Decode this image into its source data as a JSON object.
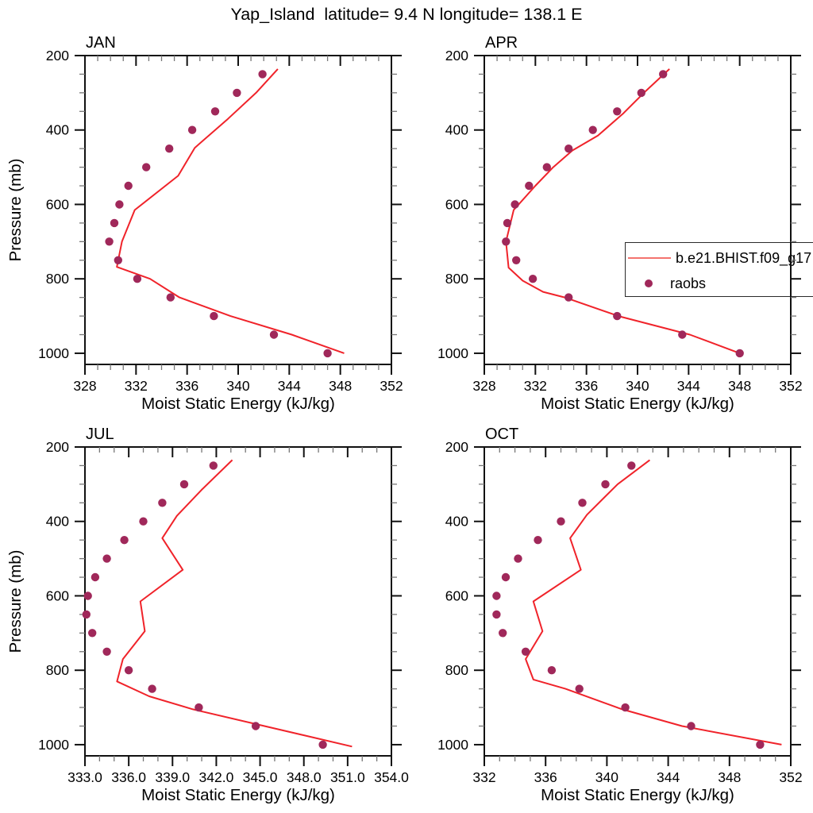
{
  "title": "Yap_Island  latitude= 9.4 N longitude= 138.1 E",
  "legend": {
    "model_label": "b.e21.BHIST.f09_g17",
    "obs_label": "raobs"
  },
  "colors": {
    "model_line": "#f0232a",
    "legend_line": "#f4736e",
    "raobs_dot": "#a0285a",
    "axis": "#111111",
    "minor_tick": "#777777",
    "text": "#000000"
  },
  "chart_data": [
    {
      "type": "line+scatter",
      "title": "JAN",
      "xlabel": "Moist Static Energy (kJ/kg)",
      "ylabel": "Pressure (mb)",
      "xlim": [
        328,
        352
      ],
      "xticks": [
        328,
        332,
        336,
        340,
        344,
        348,
        352
      ],
      "xtick_labels": [
        "328",
        "332",
        "336",
        "340",
        "344",
        "348",
        "352"
      ],
      "xminor_step": 1,
      "ylim": [
        200,
        1030
      ],
      "yticks": [
        200,
        400,
        600,
        800,
        1000
      ],
      "ytick_labels": [
        "200",
        "400",
        "600",
        "800",
        "1000"
      ],
      "yminor_step": 50,
      "y_axis_reversed": true,
      "grid": false,
      "series": [
        {
          "name": "b.e21.BHIST.f09_g17",
          "style": "line",
          "points_pv": [
            [
              236,
              343.1
            ],
            [
              300,
              341.4
            ],
            [
              370,
              339.2
            ],
            [
              448,
              336.6
            ],
            [
              523,
              335.3
            ],
            [
              615,
              331.9
            ],
            [
              700,
              330.9
            ],
            [
              768,
              330.5
            ],
            [
              800,
              333.1
            ],
            [
              850,
              335.4
            ],
            [
              900,
              339.4
            ],
            [
              950,
              344.2
            ],
            [
              1000,
              348.3
            ]
          ]
        },
        {
          "name": "raobs",
          "style": "dots",
          "points_pv": [
            [
              1000,
              347.0
            ],
            [
              950,
              342.8
            ],
            [
              900,
              338.1
            ],
            [
              850,
              334.7
            ],
            [
              800,
              332.1
            ],
            [
              750,
              330.6
            ],
            [
              700,
              329.9
            ],
            [
              650,
              330.3
            ],
            [
              600,
              330.7
            ],
            [
              550,
              331.4
            ],
            [
              500,
              332.8
            ],
            [
              450,
              334.6
            ],
            [
              400,
              336.4
            ],
            [
              350,
              338.2
            ],
            [
              300,
              339.9
            ],
            [
              250,
              341.9
            ]
          ]
        }
      ]
    },
    {
      "type": "line+scatter",
      "title": "APR",
      "xlabel": "Moist Static Energy (kJ/kg)",
      "ylabel": "",
      "xlim": [
        328,
        352
      ],
      "xticks": [
        328,
        332,
        336,
        340,
        344,
        348,
        352
      ],
      "xtick_labels": [
        "328",
        "332",
        "336",
        "340",
        "344",
        "348",
        "352"
      ],
      "xminor_step": 1,
      "ylim": [
        200,
        1030
      ],
      "yticks": [
        200,
        400,
        600,
        800,
        1000
      ],
      "ytick_labels": [
        "200",
        "400",
        "600",
        "800",
        "1000"
      ],
      "yminor_step": 50,
      "y_axis_reversed": true,
      "grid": false,
      "series": [
        {
          "name": "b.e21.BHIST.f09_g17",
          "style": "line",
          "points_pv": [
            [
              236,
              342.5
            ],
            [
              300,
              340.5
            ],
            [
              355,
              338.9
            ],
            [
              415,
              336.9
            ],
            [
              455,
              334.9
            ],
            [
              500,
              333.4
            ],
            [
              550,
              332.0
            ],
            [
              615,
              330.3
            ],
            [
              700,
              329.7
            ],
            [
              770,
              329.9
            ],
            [
              805,
              331.0
            ],
            [
              835,
              332.6
            ],
            [
              850,
              334.3
            ],
            [
              900,
              338.5
            ],
            [
              950,
              344.1
            ],
            [
              1000,
              348.0
            ]
          ]
        },
        {
          "name": "raobs",
          "style": "dots",
          "points_pv": [
            [
              1000,
              348.0
            ],
            [
              950,
              343.5
            ],
            [
              900,
              338.4
            ],
            [
              850,
              334.6
            ],
            [
              800,
              331.8
            ],
            [
              750,
              330.5
            ],
            [
              700,
              329.7
            ],
            [
              650,
              329.8
            ],
            [
              600,
              330.4
            ],
            [
              550,
              331.5
            ],
            [
              500,
              332.9
            ],
            [
              450,
              334.6
            ],
            [
              400,
              336.5
            ],
            [
              350,
              338.4
            ],
            [
              300,
              340.3
            ],
            [
              250,
              342.0
            ]
          ]
        }
      ]
    },
    {
      "type": "line+scatter",
      "title": "JUL",
      "xlabel": "Moist Static Energy (kJ/kg)",
      "ylabel": "Pressure (mb)",
      "xlim": [
        333,
        354
      ],
      "xticks": [
        333,
        336,
        339,
        342,
        345,
        348,
        351,
        354
      ],
      "xtick_labels": [
        "333.0",
        "336.0",
        "339.0",
        "342.0",
        "345.0",
        "348.0",
        "351.0",
        "354.0"
      ],
      "xminor_step": 1,
      "ylim": [
        200,
        1030
      ],
      "yticks": [
        200,
        400,
        600,
        800,
        1000
      ],
      "ytick_labels": [
        "200",
        "400",
        "600",
        "800",
        "1000"
      ],
      "yminor_step": 50,
      "y_axis_reversed": true,
      "grid": false,
      "series": [
        {
          "name": "b.e21.BHIST.f09_g17",
          "style": "line",
          "points_pv": [
            [
              235,
              343.1
            ],
            [
              315,
              341.0
            ],
            [
              385,
              339.3
            ],
            [
              445,
              338.3
            ],
            [
              530,
              339.7
            ],
            [
              615,
              336.8
            ],
            [
              695,
              337.1
            ],
            [
              770,
              335.6
            ],
            [
              830,
              335.2
            ],
            [
              870,
              337.4
            ],
            [
              905,
              340.4
            ],
            [
              950,
              345.3
            ],
            [
              1005,
              351.3
            ]
          ]
        },
        {
          "name": "raobs",
          "style": "dots",
          "points_pv": [
            [
              1000,
              349.3
            ],
            [
              950,
              344.7
            ],
            [
              900,
              340.8
            ],
            [
              850,
              337.6
            ],
            [
              800,
              336.0
            ],
            [
              750,
              334.5
            ],
            [
              700,
              333.5
            ],
            [
              650,
              333.1
            ],
            [
              600,
              333.2
            ],
            [
              550,
              333.7
            ],
            [
              500,
              334.5
            ],
            [
              450,
              335.7
            ],
            [
              400,
              337.0
            ],
            [
              350,
              338.3
            ],
            [
              300,
              339.8
            ],
            [
              250,
              341.8
            ]
          ]
        }
      ]
    },
    {
      "type": "line+scatter",
      "title": "OCT",
      "xlabel": "Moist Static Energy (kJ/kg)",
      "ylabel": "",
      "xlim": [
        332,
        352
      ],
      "xticks": [
        332,
        336,
        340,
        344,
        348,
        352
      ],
      "xtick_labels": [
        "332",
        "336",
        "340",
        "344",
        "348",
        "352"
      ],
      "xminor_step": 1,
      "ylim": [
        200,
        1030
      ],
      "yticks": [
        200,
        400,
        600,
        800,
        1000
      ],
      "ytick_labels": [
        "200",
        "400",
        "600",
        "800",
        "1000"
      ],
      "yminor_step": 50,
      "y_axis_reversed": true,
      "grid": false,
      "series": [
        {
          "name": "b.e21.BHIST.f09_g17",
          "style": "line",
          "points_pv": [
            [
              235,
              342.8
            ],
            [
              300,
              340.7
            ],
            [
              382,
              338.7
            ],
            [
              445,
              337.6
            ],
            [
              530,
              338.3
            ],
            [
              615,
              335.2
            ],
            [
              695,
              335.8
            ],
            [
              770,
              334.7
            ],
            [
              825,
              335.2
            ],
            [
              850,
              337.3
            ],
            [
              905,
              341.0
            ],
            [
              950,
              344.9
            ],
            [
              1000,
              351.4
            ]
          ]
        },
        {
          "name": "raobs",
          "style": "dots",
          "points_pv": [
            [
              1000,
              350.0
            ],
            [
              950,
              345.5
            ],
            [
              900,
              341.2
            ],
            [
              850,
              338.2
            ],
            [
              800,
              336.4
            ],
            [
              750,
              334.7
            ],
            [
              700,
              333.2
            ],
            [
              650,
              332.8
            ],
            [
              600,
              332.8
            ],
            [
              550,
              333.4
            ],
            [
              500,
              334.2
            ],
            [
              450,
              335.5
            ],
            [
              400,
              337.0
            ],
            [
              350,
              338.4
            ],
            [
              300,
              339.9
            ],
            [
              250,
              341.6
            ]
          ]
        }
      ]
    }
  ]
}
